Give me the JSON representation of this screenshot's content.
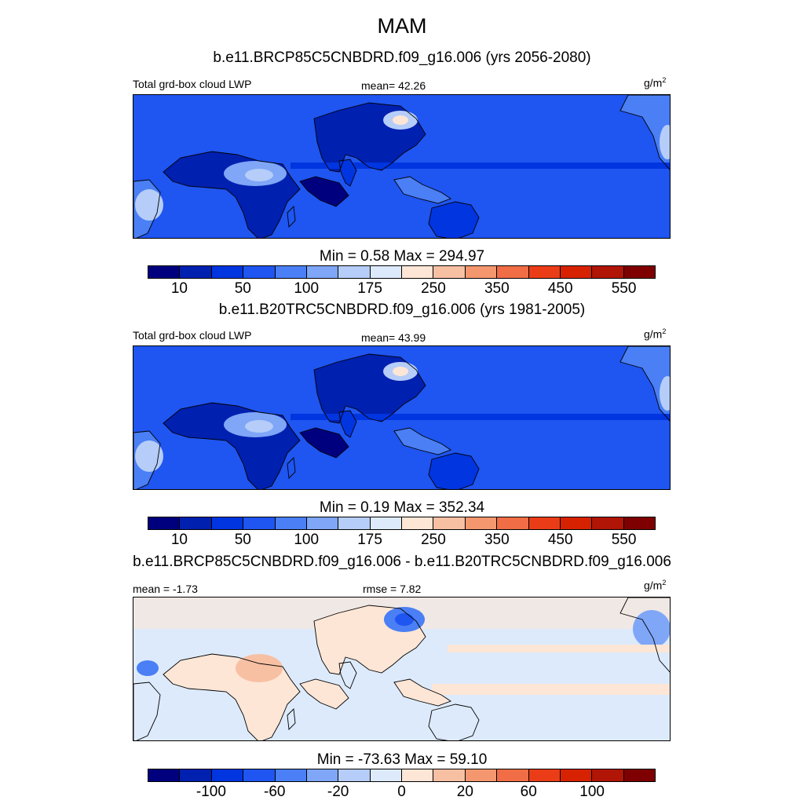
{
  "title": "MAM",
  "units_main": "g/m",
  "units_sup": "2",
  "palette": [
    "#00007f",
    "#0020b0",
    "#0035e0",
    "#1f55f0",
    "#4a7ff5",
    "#7fa6f7",
    "#b5cdf8",
    "#ddeafb",
    "#fde6d6",
    "#f8c0a3",
    "#f4976f",
    "#f06d45",
    "#ea3d17",
    "#d72202",
    "#b01506",
    "#7f0000"
  ],
  "panels": [
    {
      "subtitle": "b.e11.BRCP85C5CNBDRD.f09_g16.006 (yrs 2056-2080)",
      "left_label": "Total grd-box cloud LWP",
      "mid_label": "mean=  42.26",
      "minmax": "Min =    0.58 Max = 294.97",
      "tick_labels": [
        "10",
        "50",
        "100",
        "175",
        "250",
        "350",
        "450",
        "550"
      ],
      "kind": "field"
    },
    {
      "subtitle": "b.e11.B20TRC5CNBDRD.f09_g16.006 (yrs 1981-2005)",
      "left_label": "Total grd-box cloud LWP",
      "mid_label": "mean=  43.99",
      "minmax": "Min =    0.19 Max = 352.34",
      "tick_labels": [
        "10",
        "50",
        "100",
        "175",
        "250",
        "350",
        "450",
        "550"
      ],
      "kind": "field"
    },
    {
      "subtitle": "b.e11.BRCP85C5CNBDRD.f09_g16.006 - b.e11.B20TRC5CNBDRD.f09_g16.006",
      "left_label": "mean =  -1.73",
      "mid_label": "rmse =   7.82",
      "minmax": "Min = -73.63 Max =  59.10",
      "tick_labels": [
        "-100",
        "-60",
        "-20",
        "0",
        "20",
        "60",
        "100"
      ],
      "kind": "diff"
    }
  ]
}
